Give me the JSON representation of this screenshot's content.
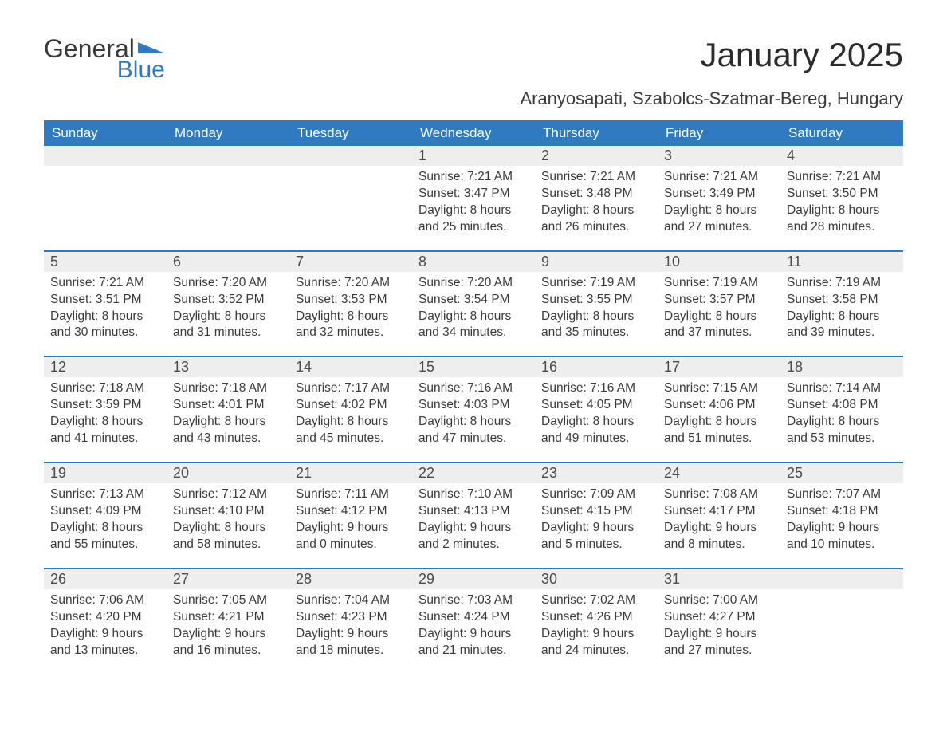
{
  "brand": {
    "word1": "General",
    "word2": "Blue",
    "accent_color": "#2f7ac0"
  },
  "title": "January 2025",
  "location": "Aranyosapati, Szabolcs-Szatmar-Bereg, Hungary",
  "colors": {
    "header_bg": "#2f7ac0",
    "header_text": "#ffffff",
    "row_border": "#2f7ac0",
    "daynum_bg": "#eeeeee",
    "body_text": "#3a3a3a",
    "page_bg": "#ffffff"
  },
  "typography": {
    "title_fontsize": 42,
    "location_fontsize": 22,
    "header_fontsize": 17,
    "daynum_fontsize": 18,
    "cell_fontsize": 15.5,
    "font_family": "Arial"
  },
  "layout": {
    "columns": 7,
    "rows": 5,
    "first_day_column_index": 3
  },
  "weekdays": [
    "Sunday",
    "Monday",
    "Tuesday",
    "Wednesday",
    "Thursday",
    "Friday",
    "Saturday"
  ],
  "days": [
    {
      "n": 1,
      "sunrise": "7:21 AM",
      "sunset": "3:47 PM",
      "daylight": "8 hours and 25 minutes."
    },
    {
      "n": 2,
      "sunrise": "7:21 AM",
      "sunset": "3:48 PM",
      "daylight": "8 hours and 26 minutes."
    },
    {
      "n": 3,
      "sunrise": "7:21 AM",
      "sunset": "3:49 PM",
      "daylight": "8 hours and 27 minutes."
    },
    {
      "n": 4,
      "sunrise": "7:21 AM",
      "sunset": "3:50 PM",
      "daylight": "8 hours and 28 minutes."
    },
    {
      "n": 5,
      "sunrise": "7:21 AM",
      "sunset": "3:51 PM",
      "daylight": "8 hours and 30 minutes."
    },
    {
      "n": 6,
      "sunrise": "7:20 AM",
      "sunset": "3:52 PM",
      "daylight": "8 hours and 31 minutes."
    },
    {
      "n": 7,
      "sunrise": "7:20 AM",
      "sunset": "3:53 PM",
      "daylight": "8 hours and 32 minutes."
    },
    {
      "n": 8,
      "sunrise": "7:20 AM",
      "sunset": "3:54 PM",
      "daylight": "8 hours and 34 minutes."
    },
    {
      "n": 9,
      "sunrise": "7:19 AM",
      "sunset": "3:55 PM",
      "daylight": "8 hours and 35 minutes."
    },
    {
      "n": 10,
      "sunrise": "7:19 AM",
      "sunset": "3:57 PM",
      "daylight": "8 hours and 37 minutes."
    },
    {
      "n": 11,
      "sunrise": "7:19 AM",
      "sunset": "3:58 PM",
      "daylight": "8 hours and 39 minutes."
    },
    {
      "n": 12,
      "sunrise": "7:18 AM",
      "sunset": "3:59 PM",
      "daylight": "8 hours and 41 minutes."
    },
    {
      "n": 13,
      "sunrise": "7:18 AM",
      "sunset": "4:01 PM",
      "daylight": "8 hours and 43 minutes."
    },
    {
      "n": 14,
      "sunrise": "7:17 AM",
      "sunset": "4:02 PM",
      "daylight": "8 hours and 45 minutes."
    },
    {
      "n": 15,
      "sunrise": "7:16 AM",
      "sunset": "4:03 PM",
      "daylight": "8 hours and 47 minutes."
    },
    {
      "n": 16,
      "sunrise": "7:16 AM",
      "sunset": "4:05 PM",
      "daylight": "8 hours and 49 minutes."
    },
    {
      "n": 17,
      "sunrise": "7:15 AM",
      "sunset": "4:06 PM",
      "daylight": "8 hours and 51 minutes."
    },
    {
      "n": 18,
      "sunrise": "7:14 AM",
      "sunset": "4:08 PM",
      "daylight": "8 hours and 53 minutes."
    },
    {
      "n": 19,
      "sunrise": "7:13 AM",
      "sunset": "4:09 PM",
      "daylight": "8 hours and 55 minutes."
    },
    {
      "n": 20,
      "sunrise": "7:12 AM",
      "sunset": "4:10 PM",
      "daylight": "8 hours and 58 minutes."
    },
    {
      "n": 21,
      "sunrise": "7:11 AM",
      "sunset": "4:12 PM",
      "daylight": "9 hours and 0 minutes."
    },
    {
      "n": 22,
      "sunrise": "7:10 AM",
      "sunset": "4:13 PM",
      "daylight": "9 hours and 2 minutes."
    },
    {
      "n": 23,
      "sunrise": "7:09 AM",
      "sunset": "4:15 PM",
      "daylight": "9 hours and 5 minutes."
    },
    {
      "n": 24,
      "sunrise": "7:08 AM",
      "sunset": "4:17 PM",
      "daylight": "9 hours and 8 minutes."
    },
    {
      "n": 25,
      "sunrise": "7:07 AM",
      "sunset": "4:18 PM",
      "daylight": "9 hours and 10 minutes."
    },
    {
      "n": 26,
      "sunrise": "7:06 AM",
      "sunset": "4:20 PM",
      "daylight": "9 hours and 13 minutes."
    },
    {
      "n": 27,
      "sunrise": "7:05 AM",
      "sunset": "4:21 PM",
      "daylight": "9 hours and 16 minutes."
    },
    {
      "n": 28,
      "sunrise": "7:04 AM",
      "sunset": "4:23 PM",
      "daylight": "9 hours and 18 minutes."
    },
    {
      "n": 29,
      "sunrise": "7:03 AM",
      "sunset": "4:24 PM",
      "daylight": "9 hours and 21 minutes."
    },
    {
      "n": 30,
      "sunrise": "7:02 AM",
      "sunset": "4:26 PM",
      "daylight": "9 hours and 24 minutes."
    },
    {
      "n": 31,
      "sunrise": "7:00 AM",
      "sunset": "4:27 PM",
      "daylight": "9 hours and 27 minutes."
    }
  ],
  "labels": {
    "sunrise": "Sunrise:",
    "sunset": "Sunset:",
    "daylight": "Daylight:"
  }
}
